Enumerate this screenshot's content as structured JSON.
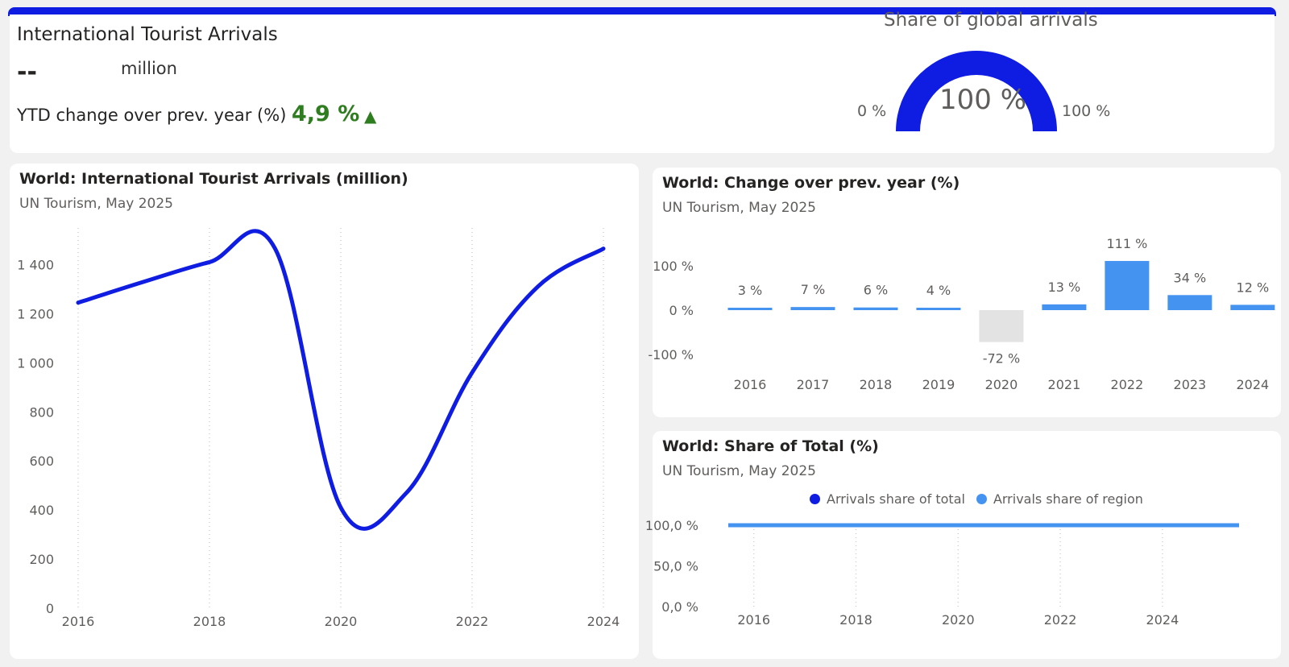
{
  "kpi": {
    "title": "International Tourist Arrivals",
    "value": "--",
    "unit": "million",
    "ytd_label": "YTD change over prev. year (%)",
    "ytd_value": "4,9 %",
    "ytd_arrow": "▲",
    "ytd_color": "#2e7d1e"
  },
  "gauge": {
    "title": "Share of global arrivals",
    "value": 100,
    "value_label": "100 %",
    "min_label": "0 %",
    "max_label": "100 %",
    "color": "#0f1de3"
  },
  "line_card": {
    "title": "World: International Tourist Arrivals (million)",
    "subtitle": "UN Tourism, May 2025"
  },
  "bar_card": {
    "title": "World: Change over prev. year (%)",
    "subtitle": "UN Tourism, May 2025"
  },
  "share_card": {
    "title": "World: Share of Total (%)",
    "subtitle": "UN Tourism, May 2025",
    "legend": [
      {
        "label": "Arrivals share of total",
        "color": "#0f1de3"
      },
      {
        "label": "Arrivals share of region",
        "color": "#4493f0"
      }
    ]
  },
  "chart_data": [
    {
      "type": "line",
      "x": [
        2016,
        2017,
        2018,
        2019,
        2020,
        2021,
        2022,
        2023,
        2024
      ],
      "series": [
        {
          "values": [
            1245,
            1330,
            1410,
            1465,
            410,
            470,
            960,
            1310,
            1465
          ]
        }
      ],
      "ylim": [
        0,
        1500
      ],
      "yticks": [
        0,
        200,
        400,
        600,
        800,
        1000,
        1200,
        1400
      ],
      "ytick_labels": [
        "0",
        "200",
        "400",
        "600",
        "800",
        "1 000",
        "1 200",
        "1 400"
      ],
      "xticks": [
        2016,
        2018,
        2020,
        2022,
        2024
      ],
      "grid": "vertical dotted",
      "color": "#0f1de3"
    },
    {
      "type": "bar",
      "categories": [
        "2016",
        "2017",
        "2018",
        "2019",
        "2020",
        "2021",
        "2022",
        "2023",
        "2024"
      ],
      "values": [
        3,
        7,
        6,
        4,
        -72,
        13,
        111,
        34,
        12
      ],
      "data_labels": [
        "3 %",
        "7 %",
        "6 %",
        "4 %",
        "-72 %",
        "13 %",
        "111 %",
        "34 %",
        "12 %"
      ],
      "ylim": [
        -100,
        100
      ],
      "yticks": [
        -100,
        0,
        100
      ],
      "ytick_labels": [
        "-100 %",
        "0 %",
        "100 %"
      ],
      "positive_color": "#4493f0",
      "negative_color": "#e3e3e3"
    },
    {
      "type": "line",
      "x": [
        2015.5,
        2025.5
      ],
      "series": [
        {
          "name": "Arrivals share of region",
          "values": [
            100,
            100
          ],
          "color": "#4493f0"
        }
      ],
      "ylim": [
        0,
        100
      ],
      "yticks": [
        0,
        50,
        100
      ],
      "ytick_labels": [
        "0,0 %",
        "50,0 %",
        "100,0 %"
      ],
      "xticks": [
        2016,
        2018,
        2020,
        2022,
        2024
      ],
      "grid": "vertical dotted"
    }
  ]
}
